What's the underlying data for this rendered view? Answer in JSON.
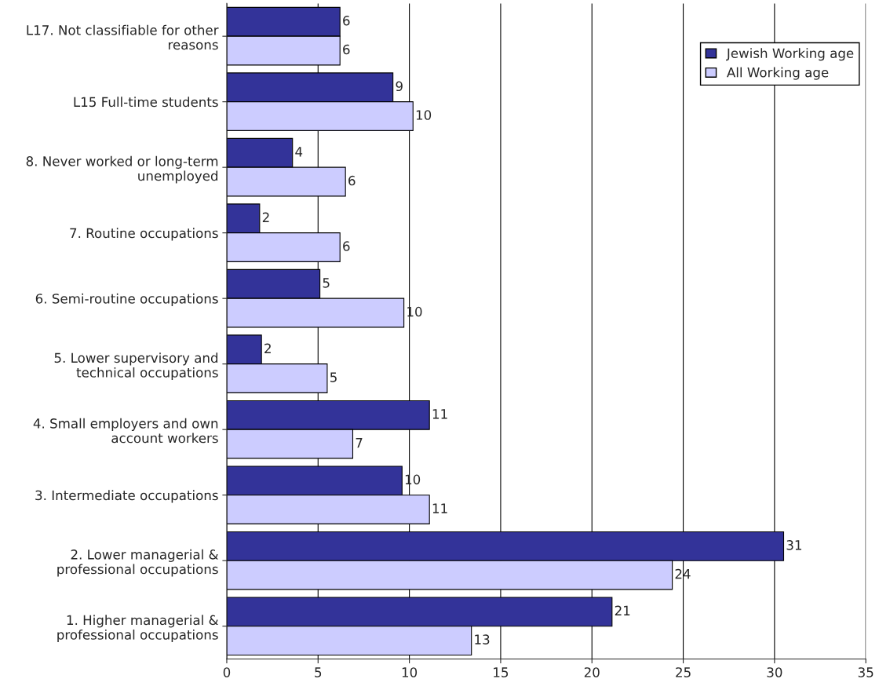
{
  "chart_data": {
    "type": "bar",
    "orientation": "horizontal",
    "categories": [
      "L17. Not classifiable for other\nreasons",
      "L15 Full-time students",
      "8. Never worked or long-term\nunemployed",
      "7. Routine occupations",
      "6. Semi-routine occupations",
      "5. Lower supervisory and\ntechnical occupations",
      "4. Small employers and own\naccount workers",
      "3. Intermediate occupations",
      "2. Lower managerial &\nprofessional occupations",
      "1. Higher managerial &\nprofessional occupations"
    ],
    "series": [
      {
        "name": "Jewish Working age",
        "color": "#333399",
        "values": [
          6.2,
          9.1,
          3.6,
          1.8,
          5.1,
          1.9,
          11.1,
          9.6,
          30.5,
          21.1
        ],
        "value_labels": [
          "6",
          "9",
          "4",
          "2",
          "5",
          "2",
          "11",
          "10",
          "31",
          "21"
        ]
      },
      {
        "name": "All Working age",
        "color": "#ccccff",
        "values": [
          6.2,
          10.2,
          6.5,
          6.2,
          9.7,
          5.5,
          6.9,
          11.1,
          24.4,
          13.4
        ],
        "value_labels": [
          "6",
          "10",
          "6",
          "6",
          "10",
          "5",
          "7",
          "11",
          "24",
          "13"
        ]
      }
    ],
    "xlim": [
      0,
      35
    ],
    "xticks": [
      0,
      5,
      10,
      15,
      20,
      25,
      30,
      35
    ],
    "grid": "x",
    "legend": "top right"
  }
}
